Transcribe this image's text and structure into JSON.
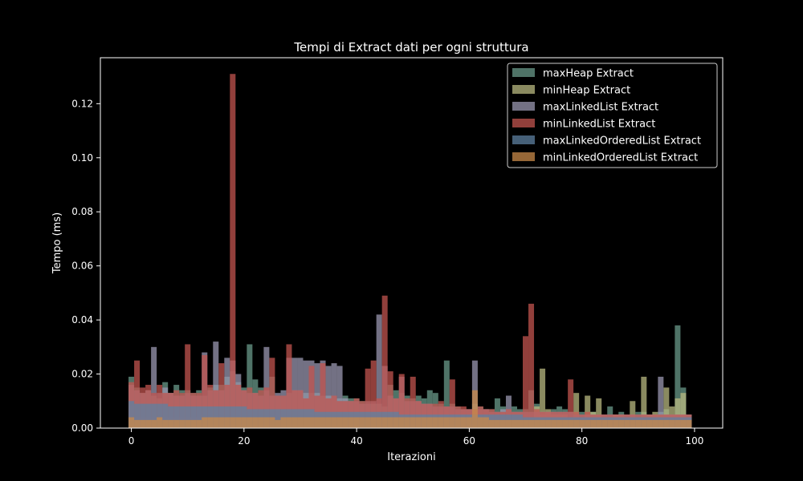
{
  "colors": {
    "background": "#000000",
    "axes": "#ffffff",
    "text": "#ffffff"
  },
  "chart_data": {
    "type": "bar",
    "title": "Tempi di Extract dati per ogni struttura",
    "xlabel": "Iterazioni",
    "ylabel": "Tempo (ms)",
    "xlim": [
      -5.5,
      105.0
    ],
    "ylim": [
      0,
      0.137
    ],
    "xticks": [
      0,
      20,
      40,
      60,
      80,
      100
    ],
    "xtick_labels": [
      "0",
      "20",
      "40",
      "60",
      "80",
      "100"
    ],
    "yticks": [
      0,
      0.02,
      0.04,
      0.06,
      0.08,
      0.1,
      0.12
    ],
    "ytick_labels": [
      "0.00",
      "0.02",
      "0.04",
      "0.06",
      "0.08",
      "0.10",
      "0.12"
    ],
    "grid": false,
    "legend_position": "top-right",
    "bar_opacity": 0.75,
    "series": [
      {
        "name": "maxHeap Extract",
        "color": "#6a9a8a",
        "values": [
          0.019,
          0.015,
          0.013,
          0.014,
          0.012,
          0.011,
          0.017,
          0.013,
          0.016,
          0.014,
          0.014,
          0.013,
          0.014,
          0.012,
          0.015,
          0.016,
          0.016,
          0.019,
          0.021,
          0.017,
          0.015,
          0.031,
          0.018,
          0.015,
          0.014,
          0.019,
          0.012,
          0.012,
          0.013,
          0.014,
          0.014,
          0.013,
          0.013,
          0.013,
          0.012,
          0.012,
          0.012,
          0.011,
          0.012,
          0.011,
          0.011,
          0.01,
          0.009,
          0.009,
          0.009,
          0.008,
          0.016,
          0.014,
          0.013,
          0.012,
          0.011,
          0.012,
          0.011,
          0.014,
          0.013,
          0.009,
          0.025,
          0.009,
          0.008,
          0.007,
          0.007,
          0.009,
          0.008,
          0.007,
          0.007,
          0.011,
          0.008,
          0.007,
          0.008,
          0.007,
          0.007,
          0.014,
          0.009,
          0.005,
          0.006,
          0.007,
          0.008,
          0.007,
          0.006,
          0.006,
          0.006,
          0.005,
          0.006,
          0.005,
          0.005,
          0.008,
          0.005,
          0.006,
          0.005,
          0.005,
          0.006,
          0.006,
          0.005,
          0.005,
          0.006,
          0.007,
          0.005,
          0.038,
          0.015,
          0.005
        ]
      },
      {
        "name": "minHeap Extract",
        "color": "#b8b880",
        "values": [
          0.008,
          0.004,
          0.004,
          0.004,
          0.004,
          0.004,
          0.004,
          0.004,
          0.004,
          0.004,
          0.004,
          0.004,
          0.004,
          0.004,
          0.004,
          0.004,
          0.004,
          0.004,
          0.004,
          0.004,
          0.004,
          0.004,
          0.004,
          0.004,
          0.004,
          0.004,
          0.003,
          0.003,
          0.003,
          0.003,
          0.003,
          0.003,
          0.003,
          0.003,
          0.003,
          0.003,
          0.003,
          0.003,
          0.003,
          0.003,
          0.003,
          0.003,
          0.003,
          0.003,
          0.003,
          0.003,
          0.004,
          0.003,
          0.003,
          0.003,
          0.003,
          0.003,
          0.003,
          0.003,
          0.003,
          0.003,
          0.003,
          0.003,
          0.003,
          0.003,
          0.003,
          0.003,
          0.003,
          0.003,
          0.003,
          0.003,
          0.003,
          0.003,
          0.003,
          0.003,
          0.003,
          0.003,
          0.008,
          0.022,
          0.007,
          0.005,
          0.005,
          0.005,
          0.004,
          0.013,
          0.004,
          0.012,
          0.006,
          0.011,
          0.004,
          0.004,
          0.005,
          0.005,
          0.004,
          0.01,
          0.004,
          0.019,
          0.005,
          0.006,
          0.005,
          0.015,
          0.008,
          0.011,
          0.013,
          0.004
        ]
      },
      {
        "name": "maxLinkedList Extract",
        "color": "#9a97b0",
        "values": [
          0.016,
          0.014,
          0.013,
          0.014,
          0.03,
          0.013,
          0.015,
          0.013,
          0.012,
          0.012,
          0.013,
          0.012,
          0.012,
          0.028,
          0.014,
          0.032,
          0.014,
          0.026,
          0.025,
          0.02,
          0.014,
          0.013,
          0.013,
          0.012,
          0.03,
          0.012,
          0.013,
          0.014,
          0.026,
          0.026,
          0.026,
          0.025,
          0.025,
          0.024,
          0.025,
          0.023,
          0.024,
          0.023,
          0.011,
          0.01,
          0.01,
          0.009,
          0.01,
          0.01,
          0.042,
          0.023,
          0.012,
          0.011,
          0.019,
          0.01,
          0.01,
          0.01,
          0.009,
          0.009,
          0.008,
          0.008,
          0.008,
          0.008,
          0.007,
          0.007,
          0.007,
          0.025,
          0.007,
          0.007,
          0.006,
          0.006,
          0.007,
          0.012,
          0.006,
          0.006,
          0.006,
          0.006,
          0.006,
          0.006,
          0.006,
          0.006,
          0.006,
          0.006,
          0.006,
          0.005,
          0.005,
          0.005,
          0.005,
          0.005,
          0.005,
          0.005,
          0.005,
          0.005,
          0.005,
          0.005,
          0.005,
          0.005,
          0.005,
          0.005,
          0.019,
          0.005,
          0.005,
          0.005,
          0.005,
          0.005
        ]
      },
      {
        "name": "minLinkedList Extract",
        "color": "#c2544f",
        "values": [
          0.017,
          0.025,
          0.015,
          0.016,
          0.013,
          0.016,
          0.013,
          0.013,
          0.014,
          0.013,
          0.031,
          0.013,
          0.013,
          0.027,
          0.016,
          0.014,
          0.024,
          0.016,
          0.131,
          0.016,
          0.014,
          0.015,
          0.013,
          0.014,
          0.015,
          0.026,
          0.012,
          0.012,
          0.031,
          0.014,
          0.014,
          0.011,
          0.023,
          0.012,
          0.024,
          0.011,
          0.012,
          0.01,
          0.01,
          0.01,
          0.011,
          0.01,
          0.022,
          0.025,
          0.011,
          0.049,
          0.021,
          0.011,
          0.02,
          0.011,
          0.019,
          0.01,
          0.009,
          0.009,
          0.009,
          0.01,
          0.008,
          0.018,
          0.008,
          0.008,
          0.007,
          0.007,
          0.008,
          0.007,
          0.007,
          0.006,
          0.006,
          0.007,
          0.006,
          0.006,
          0.034,
          0.046,
          0.007,
          0.006,
          0.006,
          0.006,
          0.006,
          0.006,
          0.018,
          0.006,
          0.005,
          0.006,
          0.005,
          0.005,
          0.005,
          0.005,
          0.005,
          0.005,
          0.005,
          0.005,
          0.005,
          0.005,
          0.005,
          0.005,
          0.005,
          0.005,
          0.005,
          0.005,
          0.005,
          0.005
        ]
      },
      {
        "name": "maxLinkedOrderedList Extract",
        "color": "#5d80a0",
        "values": [
          0.01,
          0.009,
          0.009,
          0.009,
          0.009,
          0.009,
          0.009,
          0.008,
          0.008,
          0.008,
          0.008,
          0.008,
          0.008,
          0.008,
          0.008,
          0.008,
          0.008,
          0.008,
          0.008,
          0.008,
          0.008,
          0.007,
          0.007,
          0.007,
          0.007,
          0.007,
          0.007,
          0.007,
          0.007,
          0.007,
          0.007,
          0.007,
          0.007,
          0.006,
          0.006,
          0.006,
          0.006,
          0.006,
          0.006,
          0.006,
          0.006,
          0.006,
          0.006,
          0.006,
          0.006,
          0.006,
          0.006,
          0.006,
          0.005,
          0.005,
          0.005,
          0.005,
          0.005,
          0.005,
          0.005,
          0.005,
          0.005,
          0.005,
          0.005,
          0.005,
          0.005,
          0.005,
          0.005,
          0.005,
          0.005,
          0.005,
          0.005,
          0.005,
          0.005,
          0.005,
          0.004,
          0.004,
          0.004,
          0.004,
          0.004,
          0.004,
          0.004,
          0.004,
          0.004,
          0.004,
          0.004,
          0.004,
          0.004,
          0.004,
          0.004,
          0.004,
          0.004,
          0.004,
          0.004,
          0.004,
          0.004,
          0.004,
          0.004,
          0.004,
          0.004,
          0.004,
          0.004,
          0.004,
          0.004,
          0.004
        ]
      },
      {
        "name": "minLinkedOrderedList Extract",
        "color": "#c8894a",
        "values": [
          0.004,
          0.003,
          0.003,
          0.003,
          0.003,
          0.004,
          0.003,
          0.003,
          0.003,
          0.003,
          0.003,
          0.003,
          0.003,
          0.004,
          0.004,
          0.004,
          0.004,
          0.004,
          0.004,
          0.004,
          0.004,
          0.004,
          0.004,
          0.004,
          0.004,
          0.004,
          0.003,
          0.004,
          0.004,
          0.004,
          0.004,
          0.004,
          0.004,
          0.004,
          0.004,
          0.004,
          0.004,
          0.004,
          0.004,
          0.004,
          0.004,
          0.004,
          0.004,
          0.004,
          0.004,
          0.004,
          0.004,
          0.004,
          0.004,
          0.004,
          0.004,
          0.004,
          0.004,
          0.004,
          0.004,
          0.004,
          0.004,
          0.004,
          0.004,
          0.004,
          0.004,
          0.014,
          0.004,
          0.004,
          0.003,
          0.003,
          0.003,
          0.003,
          0.003,
          0.003,
          0.003,
          0.003,
          0.003,
          0.003,
          0.003,
          0.003,
          0.003,
          0.003,
          0.003,
          0.003,
          0.003,
          0.003,
          0.003,
          0.003,
          0.003,
          0.003,
          0.003,
          0.003,
          0.003,
          0.003,
          0.003,
          0.003,
          0.003,
          0.003,
          0.003,
          0.003,
          0.003,
          0.003,
          0.003,
          0.003
        ]
      }
    ]
  }
}
